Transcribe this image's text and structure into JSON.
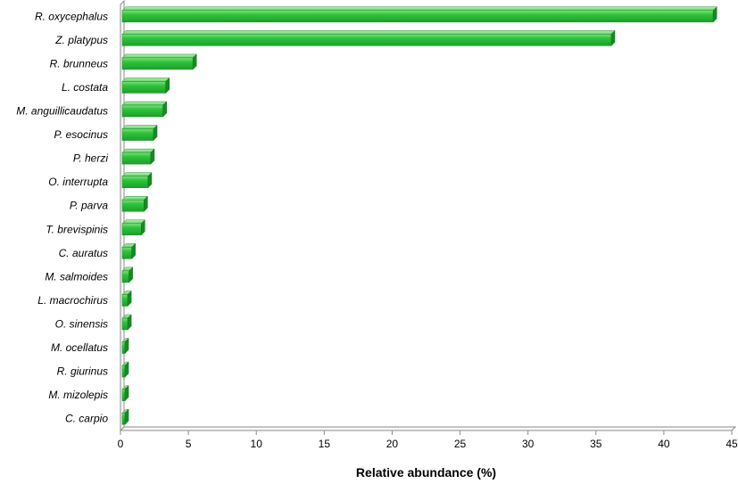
{
  "chart_data": {
    "type": "bar",
    "orientation": "horizontal",
    "style": "3d",
    "title": "",
    "xlabel": "Relative abundance (%)",
    "ylabel": "",
    "xlim": [
      0,
      45
    ],
    "x_ticks": [
      0,
      5,
      10,
      15,
      20,
      25,
      30,
      35,
      40,
      45
    ],
    "grid": false,
    "legend": "none",
    "bar_color": "#2ec43b",
    "categories": [
      "R. oxycephalus",
      "Z. platypus",
      "R. brunneus",
      "L. costata",
      "M. anguillicaudatus",
      "P. esocinus",
      "P. herzi",
      "O. interrupta",
      "P. parva",
      "T. brevispinis",
      "C. auratus",
      "M. salmoides",
      "L. macrochirus",
      "O. sinensis",
      "M. ocellatus",
      "R. giurinus",
      "M. mizolepis",
      "C. carpio"
    ],
    "values": [
      43.5,
      36.0,
      5.2,
      3.2,
      3.0,
      2.3,
      2.1,
      1.9,
      1.6,
      1.4,
      0.7,
      0.5,
      0.4,
      0.4,
      0.2,
      0.2,
      0.2,
      0.2
    ]
  }
}
